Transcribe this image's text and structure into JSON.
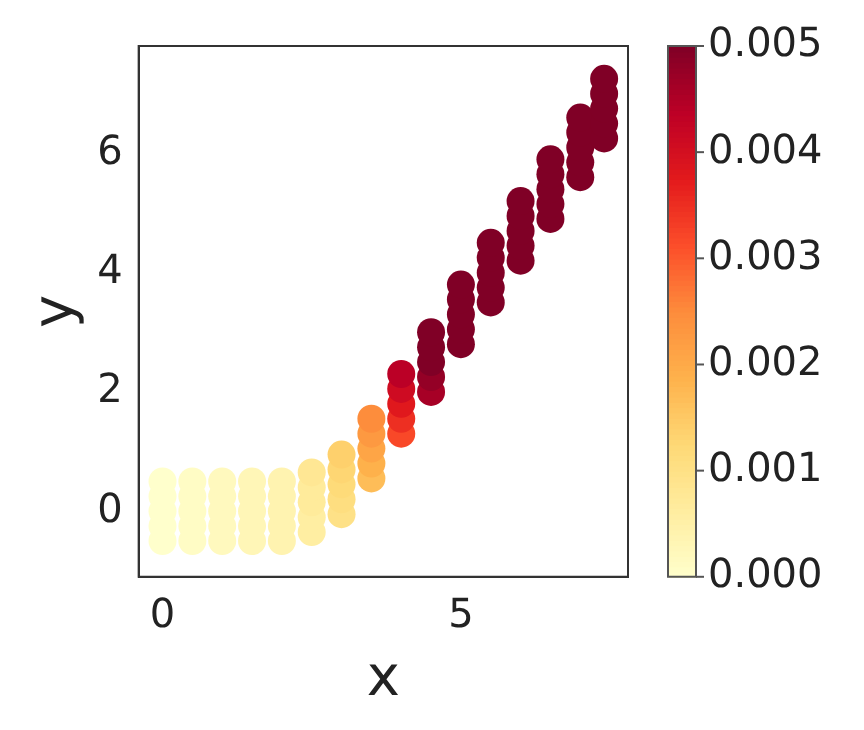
{
  "chart_data": {
    "type": "scatter",
    "xlabel": "x",
    "ylabel": "y",
    "xlim": [
      -0.4,
      7.8
    ],
    "ylim": [
      -1.1,
      7.8
    ],
    "xticks": [
      0,
      5
    ],
    "yticks": [
      0,
      2,
      4,
      6
    ],
    "grid": false,
    "legend": false,
    "marker": "circle",
    "clim": [
      0,
      0.005
    ],
    "cticks": [
      {
        "value": 0,
        "label": "0.000"
      },
      {
        "value": 0.001,
        "label": "0.001"
      },
      {
        "value": 0.002,
        "label": "0.002"
      },
      {
        "value": 0.003,
        "label": "0.003"
      },
      {
        "value": 0.004,
        "label": "0.004"
      },
      {
        "value": 0.005,
        "label": "0.005"
      }
    ],
    "series": [
      {
        "x": [
          0,
          0,
          0,
          0,
          0,
          0.5,
          0.5,
          0.5,
          0.5,
          0.5,
          1,
          1,
          1,
          1,
          1,
          1.5,
          1.5,
          1.5,
          1.5,
          1.5,
          2,
          2,
          2,
          2,
          2,
          2.5,
          2.5,
          2.5,
          2.5,
          2.5,
          3,
          3,
          3,
          3,
          3,
          3.5,
          3.5,
          3.5,
          3.5,
          3.5,
          4,
          4,
          4,
          4,
          4,
          4.5,
          4.5,
          4.5,
          4.5,
          4.5,
          5,
          5,
          5,
          5,
          5,
          5.5,
          5.5,
          5.5,
          5.5,
          5.5,
          6,
          6,
          6,
          6,
          6,
          6.5,
          6.5,
          6.5,
          6.5,
          6.5,
          7,
          7,
          7,
          7,
          7,
          7.4,
          7.4,
          7.4,
          7.4,
          7.4
        ],
        "values": [
          -0.5,
          -0.25,
          0,
          0.25,
          0.5,
          -0.5,
          -0.25,
          0,
          0.25,
          0.5,
          -0.5,
          -0.25,
          0,
          0.25,
          0.5,
          -0.5,
          -0.25,
          0,
          0.25,
          0.5,
          -0.5,
          -0.25,
          0,
          0.25,
          0.5,
          -0.35,
          -0.1,
          0.15,
          0.4,
          0.65,
          -0.05,
          0.2,
          0.45,
          0.7,
          0.95,
          0.55,
          0.8,
          1.05,
          1.3,
          1.55,
          1.3,
          1.55,
          1.8,
          2.05,
          2.3,
          2,
          2.25,
          2.5,
          2.75,
          3,
          2.8,
          3.05,
          3.3,
          3.55,
          3.8,
          3.5,
          3.75,
          4,
          4.25,
          4.5,
          4.2,
          4.45,
          4.7,
          4.95,
          5.2,
          4.9,
          5.15,
          5.4,
          5.65,
          5.9,
          5.6,
          5.85,
          6.1,
          6.35,
          6.6,
          6.25,
          6.5,
          6.75,
          7,
          7.25
        ],
        "cvalues": [
          0,
          0,
          0,
          0,
          0,
          0.0001,
          0.0001,
          0.0001,
          0.0001,
          0.0001,
          0.0002,
          0.0002,
          0.0002,
          0.0002,
          0.0002,
          0.0003,
          0.0003,
          0.0003,
          0.0003,
          0.0003,
          0.0004,
          0.0004,
          0.0004,
          0.0004,
          0.0004,
          0.0006,
          0.0006,
          0.0007,
          0.0007,
          0.0008,
          0.001,
          0.0011,
          0.0012,
          0.0013,
          0.0014,
          0.0017,
          0.0019,
          0.0021,
          0.0023,
          0.0025,
          0.0032,
          0.0035,
          0.0038,
          0.0041,
          0.0044,
          0.0046,
          0.0048,
          0.005,
          0.005,
          0.005,
          0.005,
          0.005,
          0.005,
          0.005,
          0.005,
          0.005,
          0.005,
          0.005,
          0.005,
          0.005,
          0.005,
          0.005,
          0.005,
          0.005,
          0.005,
          0.005,
          0.005,
          0.005,
          0.005,
          0.005,
          0.005,
          0.005,
          0.005,
          0.005,
          0.005,
          0.005,
          0.005,
          0.005,
          0.005,
          0.005
        ]
      }
    ]
  }
}
